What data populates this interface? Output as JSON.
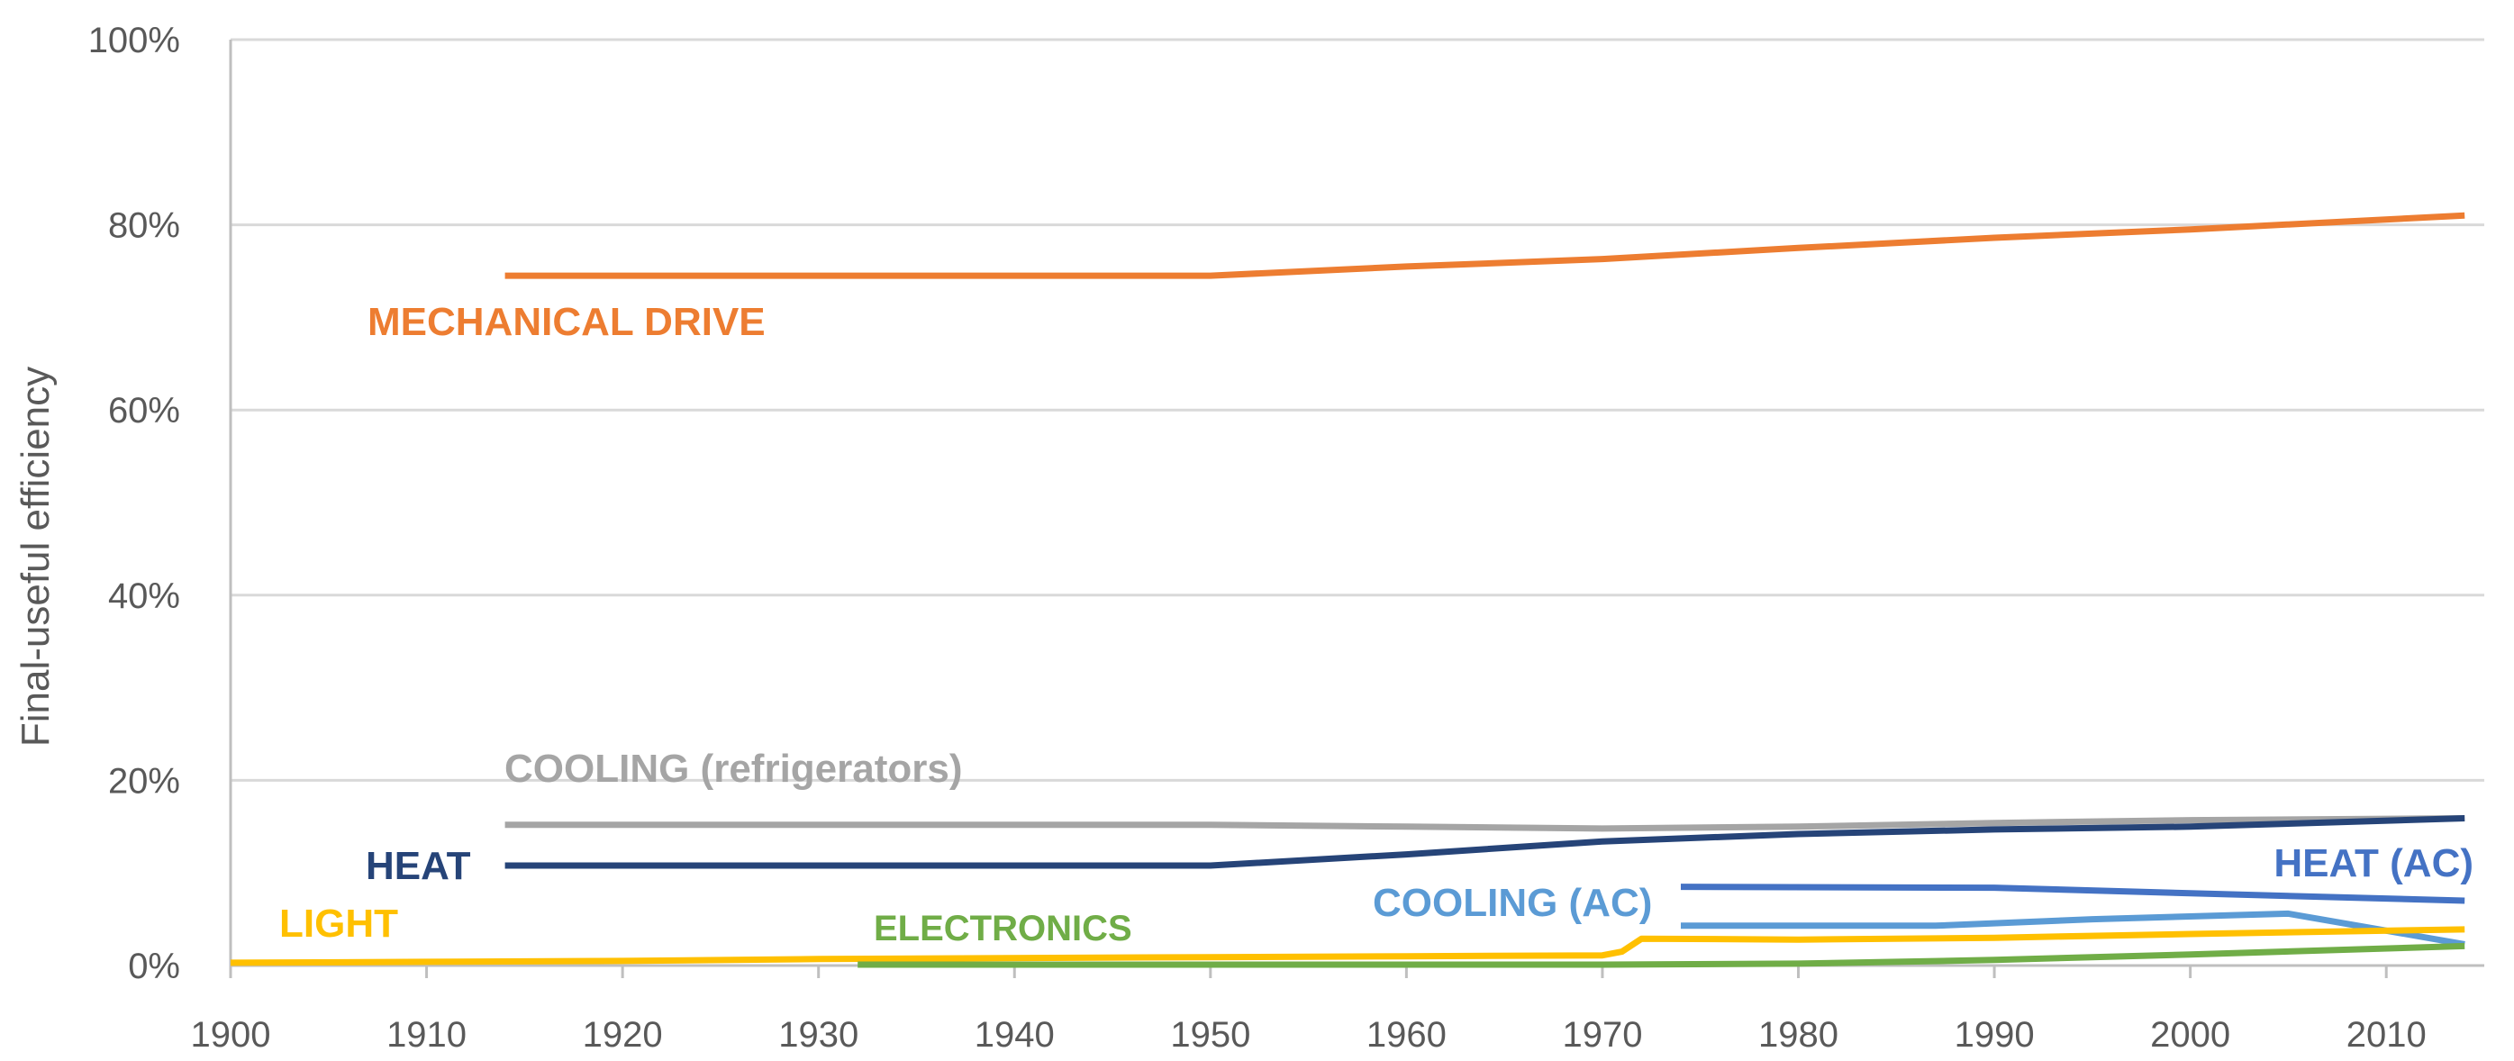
{
  "chart_data": {
    "type": "line",
    "title": "",
    "xlabel": "",
    "ylabel": "Final-useful efficiency",
    "xlim": [
      1900,
      2015
    ],
    "ylim": [
      0,
      100
    ],
    "x_ticks": [
      1900,
      1910,
      1920,
      1930,
      1940,
      1950,
      1960,
      1970,
      1980,
      1990,
      2000,
      2010
    ],
    "y_ticks": [
      {
        "value": 0,
        "label": "0%"
      },
      {
        "value": 20,
        "label": "20%"
      },
      {
        "value": 40,
        "label": "40%"
      },
      {
        "value": 60,
        "label": "60%"
      },
      {
        "value": 80,
        "label": "80%"
      },
      {
        "value": 100,
        "label": "100%"
      }
    ],
    "grid": true,
    "legend": "inline labels",
    "series": [
      {
        "key": "mechanical",
        "name": "MECHANICAL DRIVE",
        "color": "#ED7D31",
        "points": [
          [
            1914,
            74.5
          ],
          [
            1950,
            74.5
          ],
          [
            1960,
            75.5
          ],
          [
            1970,
            76.3
          ],
          [
            1980,
            77.5
          ],
          [
            1990,
            78.6
          ],
          [
            2000,
            79.5
          ],
          [
            2014,
            81.0
          ]
        ]
      },
      {
        "key": "cooling_ref",
        "name": "COOLING (refrigerators)",
        "color": "#A5A5A5",
        "points": [
          [
            1914,
            15.2
          ],
          [
            1950,
            15.2
          ],
          [
            1960,
            15.0
          ],
          [
            1970,
            14.8
          ],
          [
            1980,
            15.0
          ],
          [
            1990,
            15.4
          ],
          [
            2000,
            15.7
          ],
          [
            2014,
            15.9
          ]
        ]
      },
      {
        "key": "heat",
        "name": "HEAT",
        "color": "#264478",
        "points": [
          [
            1914,
            10.8
          ],
          [
            1950,
            10.8
          ],
          [
            1960,
            12.0
          ],
          [
            1970,
            13.4
          ],
          [
            1980,
            14.2
          ],
          [
            1990,
            14.7
          ],
          [
            2000,
            15.0
          ],
          [
            2014,
            15.9
          ]
        ]
      },
      {
        "key": "heat_ac",
        "name": "HEAT (AC)",
        "color": "#4472C4",
        "points": [
          [
            1974,
            8.5
          ],
          [
            1990,
            8.4
          ],
          [
            2000,
            7.8
          ],
          [
            2014,
            7.0
          ]
        ]
      },
      {
        "key": "cooling_ac",
        "name": "COOLING (AC)",
        "color": "#5B9BD5",
        "points": [
          [
            1974,
            4.3
          ],
          [
            1987,
            4.3
          ],
          [
            1995,
            5.0
          ],
          [
            2005,
            5.6
          ],
          [
            2014,
            2.3
          ]
        ]
      },
      {
        "key": "light",
        "name": "LIGHT",
        "color": "#FFC000",
        "points": [
          [
            1900,
            0.3
          ],
          [
            1910,
            0.4
          ],
          [
            1920,
            0.5
          ],
          [
            1930,
            0.7
          ],
          [
            1950,
            0.9
          ],
          [
            1960,
            1.0
          ],
          [
            1970,
            1.1
          ],
          [
            1971,
            1.5
          ],
          [
            1972,
            2.9
          ],
          [
            1980,
            2.8
          ],
          [
            1990,
            3.0
          ],
          [
            2000,
            3.4
          ],
          [
            2014,
            3.9
          ]
        ]
      },
      {
        "key": "electronics",
        "name": "ELECTRONICS",
        "color": "#70AD47",
        "points": [
          [
            1932,
            0.1
          ],
          [
            1950,
            0.1
          ],
          [
            1960,
            0.1
          ],
          [
            1970,
            0.1
          ],
          [
            1980,
            0.2
          ],
          [
            1990,
            0.6
          ],
          [
            2000,
            1.2
          ],
          [
            2014,
            2.1
          ]
        ]
      }
    ]
  }
}
